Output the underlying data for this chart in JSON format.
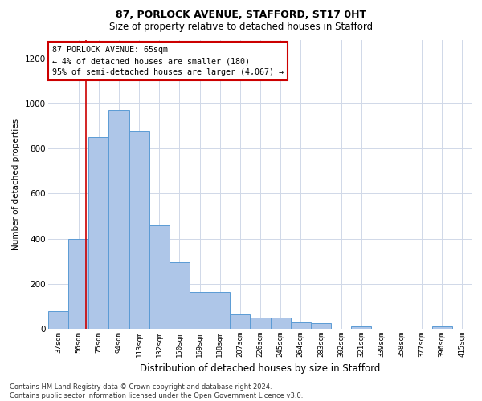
{
  "title1": "87, PORLOCK AVENUE, STAFFORD, ST17 0HT",
  "title2": "Size of property relative to detached houses in Stafford",
  "xlabel": "Distribution of detached houses by size in Stafford",
  "ylabel": "Number of detached properties",
  "footnote": "Contains HM Land Registry data © Crown copyright and database right 2024.\nContains public sector information licensed under the Open Government Licence v3.0.",
  "bar_color": "#aec6e8",
  "bar_edge_color": "#5b9bd5",
  "grid_color": "#d0d8e8",
  "categories": [
    "37sqm",
    "56sqm",
    "75sqm",
    "94sqm",
    "113sqm",
    "132sqm",
    "150sqm",
    "169sqm",
    "188sqm",
    "207sqm",
    "226sqm",
    "245sqm",
    "264sqm",
    "283sqm",
    "302sqm",
    "321sqm",
    "339sqm",
    "358sqm",
    "377sqm",
    "396sqm",
    "415sqm"
  ],
  "values": [
    80,
    400,
    850,
    970,
    880,
    460,
    295,
    165,
    165,
    65,
    50,
    50,
    30,
    25,
    0,
    10,
    0,
    0,
    0,
    10,
    0
  ],
  "ylim": [
    0,
    1280
  ],
  "yticks": [
    0,
    200,
    400,
    600,
    800,
    1000,
    1200
  ],
  "annotation_title": "87 PORLOCK AVENUE: 65sqm",
  "annotation_line1": "← 4% of detached houses are smaller (180)",
  "annotation_line2": "95% of semi-detached houses are larger (4,067) →",
  "red_line_x": 1.35,
  "annotation_box_color": "#ffffff",
  "annotation_border_color": "#cc0000",
  "background_color": "#ffffff",
  "fig_bg_color": "#ffffff",
  "title1_fontsize": 9,
  "title2_fontsize": 8.5,
  "ylabel_fontsize": 7.5,
  "xlabel_fontsize": 8.5,
  "footnote_fontsize": 6.0
}
